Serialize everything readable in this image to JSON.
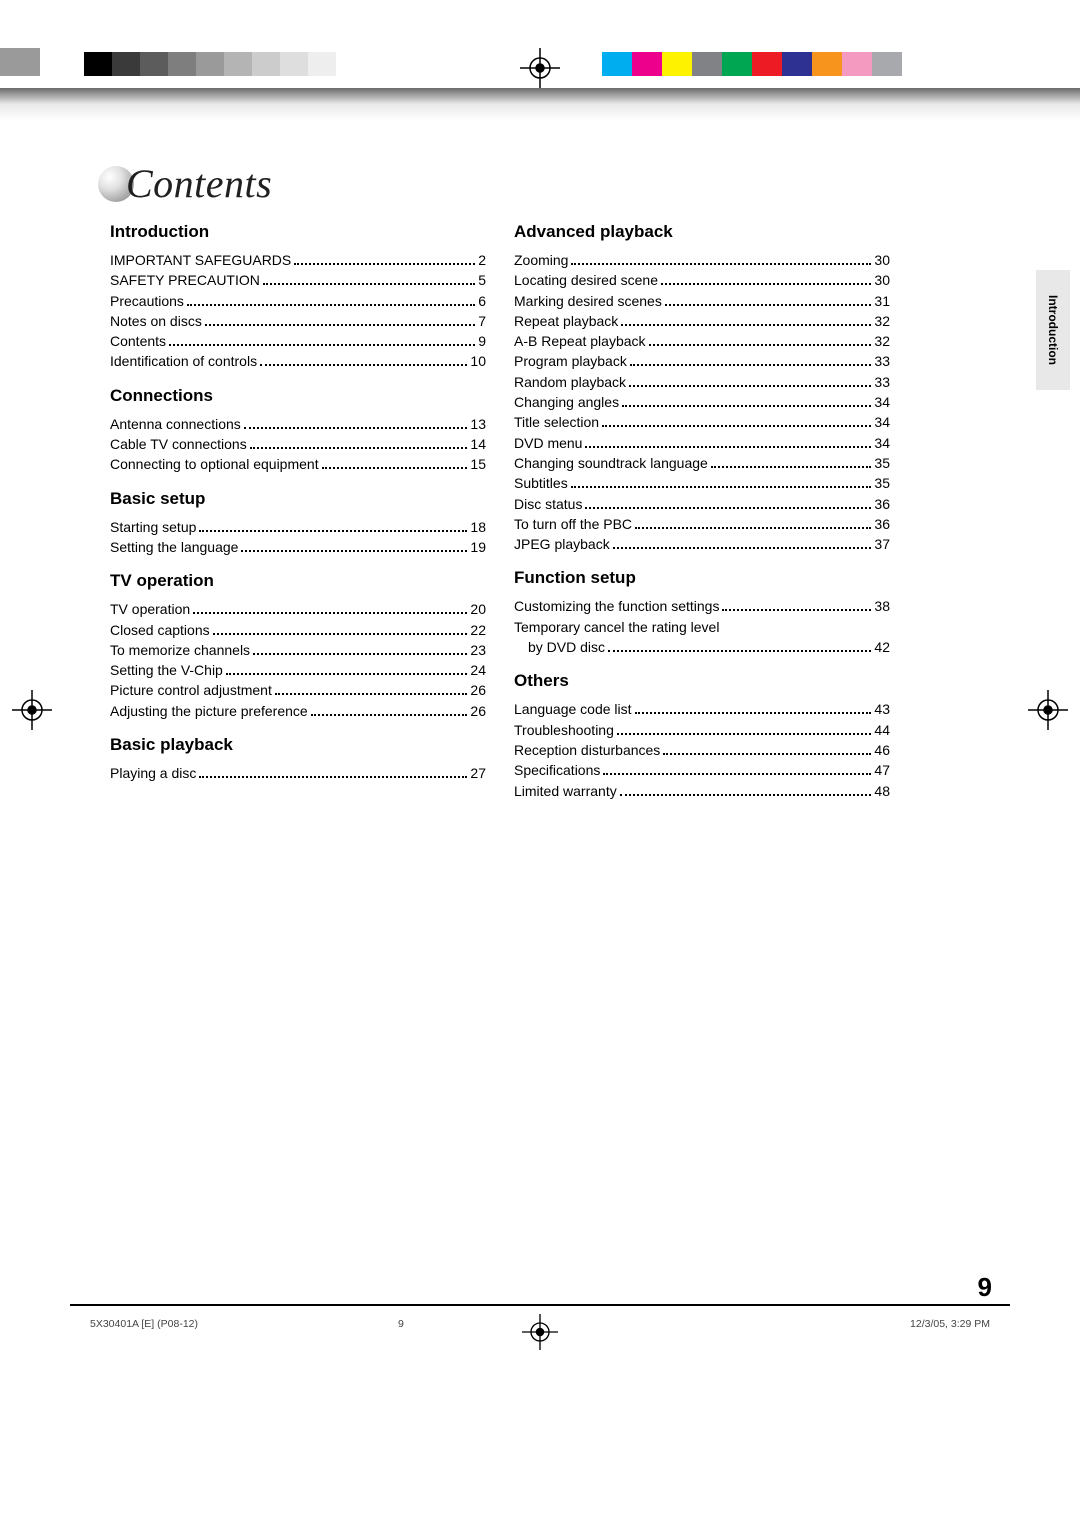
{
  "page": {
    "title": "Contents",
    "number": "9",
    "side_tab": "Introduction",
    "footer_left": "5X30401A [E] (P08-12)",
    "footer_mid": "9",
    "footer_right": "12/3/05, 3:29 PM"
  },
  "calibration": {
    "left_swatches": [
      "#000000",
      "#3a3a3a",
      "#5c5c5c",
      "#7e7e7e",
      "#9a9a9a",
      "#b4b4b4",
      "#cccccc",
      "#dedede",
      "#eeeeee",
      "#ffffff"
    ],
    "right_swatches": [
      "#00aeef",
      "#ec008c",
      "#fff200",
      "#808285",
      "#00a651",
      "#ed1c24",
      "#2e3192",
      "#f7941d",
      "#f49ac1",
      "#a7a9ac"
    ]
  },
  "left_sections": [
    {
      "heading": "Introduction",
      "items": [
        {
          "label": "IMPORTANT SAFEGUARDS",
          "page": "2"
        },
        {
          "label": "SAFETY PRECAUTION",
          "page": "5"
        },
        {
          "label": "Precautions",
          "page": "6"
        },
        {
          "label": "Notes on discs",
          "page": "7"
        },
        {
          "label": "Contents",
          "page": "9"
        },
        {
          "label": "Identification of controls",
          "page": "10"
        }
      ]
    },
    {
      "heading": "Connections",
      "items": [
        {
          "label": "Antenna connections",
          "page": "13"
        },
        {
          "label": "Cable TV connections",
          "page": "14"
        },
        {
          "label": "Connecting to optional equipment",
          "page": "15"
        }
      ]
    },
    {
      "heading": "Basic setup",
      "items": [
        {
          "label": "Starting setup",
          "page": "18"
        },
        {
          "label": "Setting the language",
          "page": "19"
        }
      ]
    },
    {
      "heading": "TV operation",
      "items": [
        {
          "label": "TV operation",
          "page": "20"
        },
        {
          "label": "Closed captions",
          "page": "22"
        },
        {
          "label": "To memorize channels",
          "page": "23"
        },
        {
          "label": "Setting the V-Chip",
          "page": "24"
        },
        {
          "label": "Picture control adjustment",
          "page": "26"
        },
        {
          "label": "Adjusting the picture preference",
          "page": "26"
        }
      ]
    },
    {
      "heading": "Basic playback",
      "items": [
        {
          "label": "Playing a disc",
          "page": "27"
        }
      ]
    }
  ],
  "right_sections": [
    {
      "heading": "Advanced playback",
      "items": [
        {
          "label": "Zooming",
          "page": "30"
        },
        {
          "label": "Locating desired scene",
          "page": "30"
        },
        {
          "label": "Marking desired scenes",
          "page": "31"
        },
        {
          "label": "Repeat playback",
          "page": "32"
        },
        {
          "label": "A-B Repeat playback",
          "page": "32"
        },
        {
          "label": "Program playback",
          "page": "33"
        },
        {
          "label": "Random playback",
          "page": "33"
        },
        {
          "label": "Changing angles",
          "page": "34"
        },
        {
          "label": "Title selection",
          "page": "34"
        },
        {
          "label": "DVD menu",
          "page": "34"
        },
        {
          "label": "Changing soundtrack language",
          "page": "35"
        },
        {
          "label": "Subtitles",
          "page": "35"
        },
        {
          "label": "Disc status",
          "page": "36"
        },
        {
          "label": "To turn off the PBC",
          "page": "36"
        },
        {
          "label": "JPEG playback",
          "page": "37"
        }
      ]
    },
    {
      "heading": "Function setup",
      "items": [
        {
          "label": "Customizing the function settings",
          "page": "38"
        },
        {
          "label": "Temporary cancel the rating level",
          "continuation": "by DVD disc",
          "page": "42"
        }
      ]
    },
    {
      "heading": "Others",
      "items": [
        {
          "label": "Language code list",
          "page": "43"
        },
        {
          "label": "Troubleshooting",
          "page": "44"
        },
        {
          "label": "Reception disturbances",
          "page": "46"
        },
        {
          "label": "Specifications",
          "page": "47"
        },
        {
          "label": "Limited warranty",
          "page": "48"
        }
      ]
    }
  ]
}
